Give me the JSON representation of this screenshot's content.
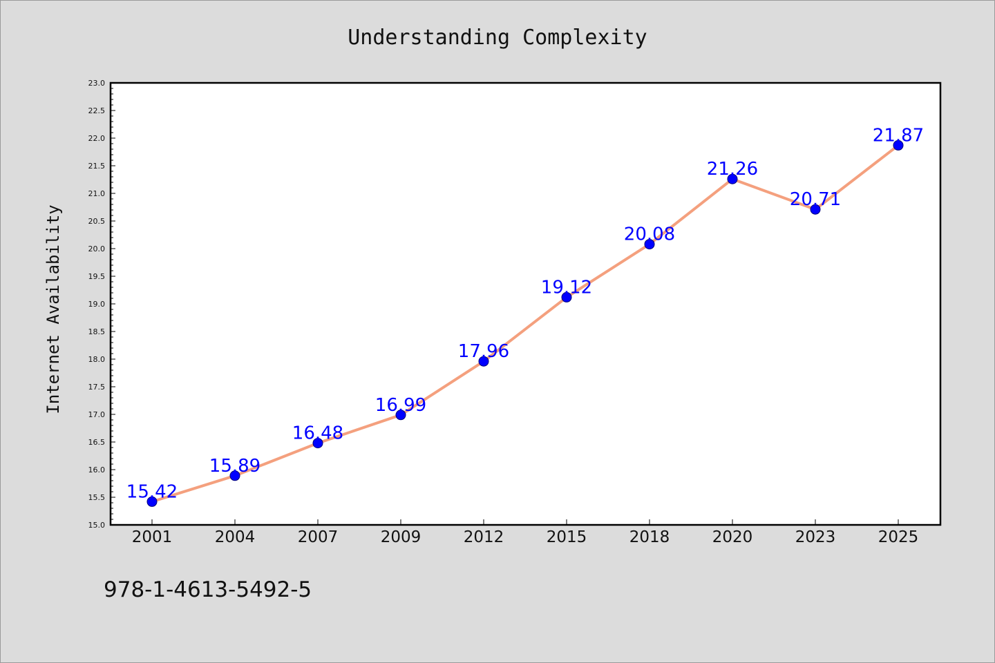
{
  "chart_data": {
    "type": "line",
    "title": "Understanding Complexity",
    "xlabel": "",
    "ylabel": "Internet Availability",
    "categories": [
      "2001",
      "2004",
      "2007",
      "2009",
      "2012",
      "2015",
      "2018",
      "2020",
      "2023",
      "2025"
    ],
    "series": [
      {
        "values": [
          15.42,
          15.89,
          16.48,
          16.99,
          17.96,
          19.12,
          20.08,
          21.26,
          20.71,
          21.87
        ],
        "data_labels": [
          "15.42",
          "15.89",
          "16.48",
          "16.99",
          "17.96",
          "19.12",
          "20.08",
          "21.26",
          "20.71",
          "21.87"
        ]
      }
    ],
    "ylim": [
      15.0,
      23.0
    ],
    "yticks": [
      "15.0",
      "15.5",
      "16.0",
      "16.5",
      "17.0",
      "17.5",
      "18.0",
      "18.5",
      "19.0",
      "19.5",
      "20.0",
      "20.5",
      "21.0",
      "21.5",
      "22.0",
      "22.5",
      "23.0"
    ],
    "grid": false,
    "line_color": "#f4a07e",
    "marker_color": "#0000ff",
    "label_color": "#0000ff",
    "background": "#ffffff",
    "figure_background": "#dcdcdc"
  },
  "footer": {
    "isbn": "978-1-4613-5492-5"
  }
}
